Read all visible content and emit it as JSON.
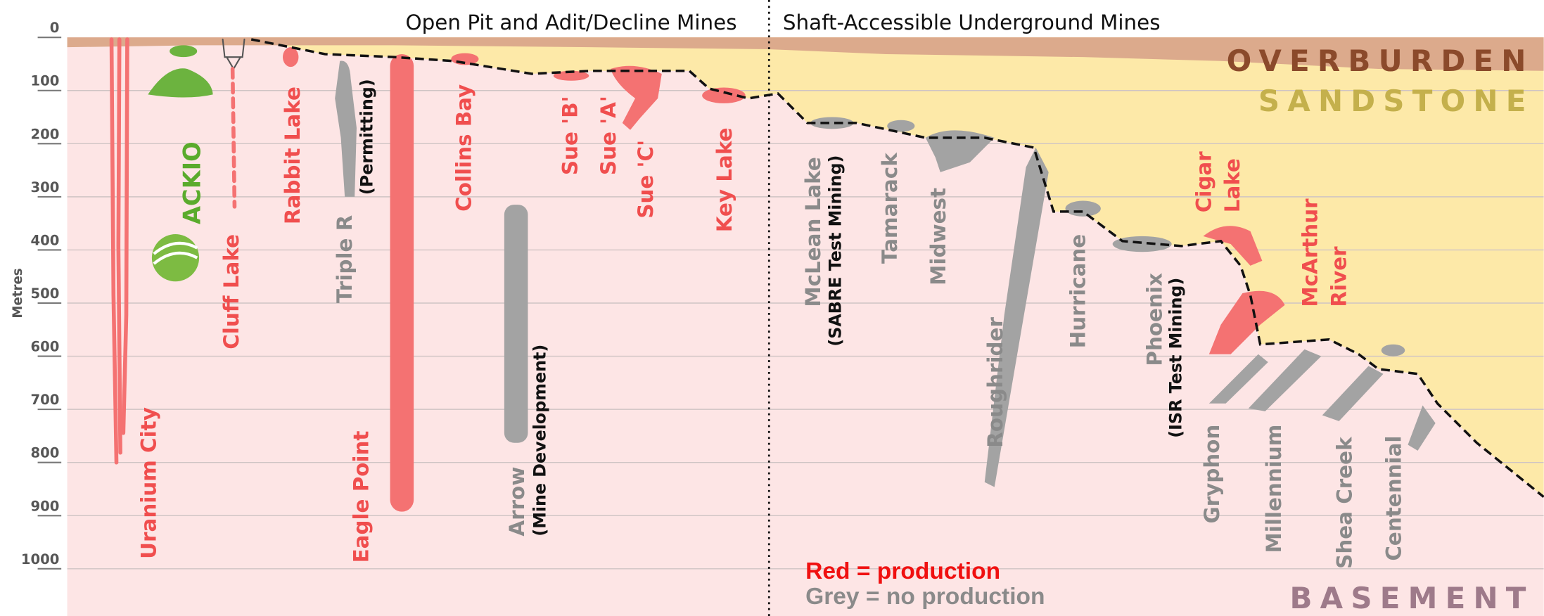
{
  "header": {
    "left": "Open Pit and Adit/Decline Mines",
    "right": "Shaft-Accessible Underground Mines"
  },
  "axis": {
    "label": "Metres",
    "ticks": [
      "0",
      "100",
      "200",
      "300",
      "400",
      "500",
      "600",
      "700",
      "800",
      "900",
      "1000"
    ]
  },
  "layers": [
    "OVERBURDEN",
    "SANDSTONE",
    "BASEMENT"
  ],
  "legend": [
    "Red = production",
    "Grey = no production"
  ],
  "mines": [
    {
      "name": [
        "Uranium City"
      ]
    },
    {
      "name": [
        "ACKIO"
      ]
    },
    {
      "name": [
        "Cluff Lake"
      ]
    },
    {
      "name": [
        "Rabbit Lake"
      ]
    },
    {
      "name": [
        "Triple R"
      ],
      "note": "(Permitting)"
    },
    {
      "name": [
        "Eagle Point"
      ]
    },
    {
      "name": [
        "Collins Bay"
      ]
    },
    {
      "name": [
        "Arrow"
      ],
      "note": "(Mine Development)"
    },
    {
      "name": [
        "Sue 'B'"
      ]
    },
    {
      "name": [
        "Sue 'A'"
      ]
    },
    {
      "name": [
        "Sue 'C'"
      ]
    },
    {
      "name": [
        "Key Lake"
      ]
    },
    {
      "name": [
        "McLean Lake"
      ],
      "note": "(SABRE Test Mining)"
    },
    {
      "name": [
        "Tamarack"
      ]
    },
    {
      "name": [
        "Midwest"
      ]
    },
    {
      "name": [
        "Roughrider"
      ]
    },
    {
      "name": [
        "Hurricane"
      ]
    },
    {
      "name": [
        "Phoenix"
      ],
      "note": "(ISR Test Mining)"
    },
    {
      "name": [
        "Cigar",
        "Lake"
      ]
    },
    {
      "name": [
        "McArthur",
        "River"
      ]
    },
    {
      "name": [
        "Gryphon"
      ]
    },
    {
      "name": [
        "Millennium"
      ]
    },
    {
      "name": [
        "Shea Creek"
      ]
    },
    {
      "name": [
        "Centennial"
      ]
    }
  ]
}
